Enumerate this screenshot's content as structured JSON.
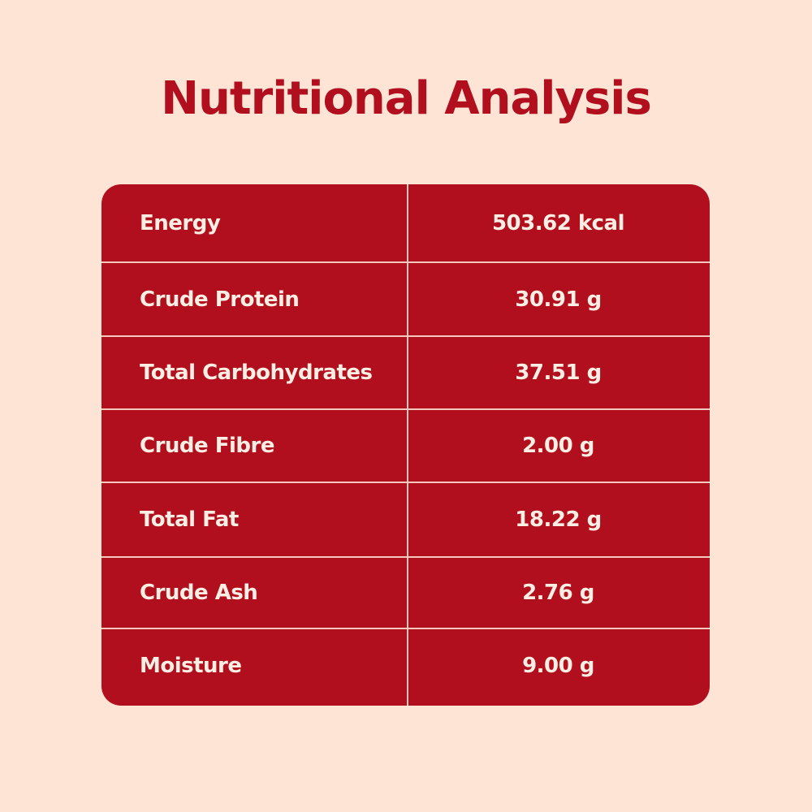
{
  "title": "Nutritional Analysis",
  "colors": {
    "background": "#fde4d5",
    "accent": "#b10e1e",
    "text_on_accent": "#fdeee4"
  },
  "rows": [
    {
      "label": "Energy",
      "value": "503.62 kcal"
    },
    {
      "label": "Crude Protein",
      "value": "30.91 g"
    },
    {
      "label": "Total Carbohydrates",
      "value": "37.51 g"
    },
    {
      "label": "Crude Fibre",
      "value": "2.00 g"
    },
    {
      "label": "Total Fat",
      "value": "18.22 g"
    },
    {
      "label": "Crude Ash",
      "value": "2.76 g"
    },
    {
      "label": "Moisture",
      "value": "9.00 g"
    }
  ]
}
